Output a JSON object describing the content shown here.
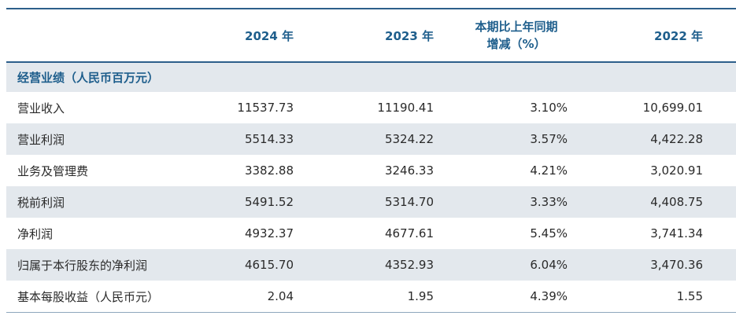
{
  "header": {
    "col_2024": "2024 年",
    "col_2023": "2023 年",
    "col_change_line1": "本期比上年同期",
    "col_change_line2": "增减（%）",
    "col_2022": "2022 年"
  },
  "section_title": "经营业绩（人民币百万元）",
  "rows": [
    {
      "label": "营业收入",
      "y2024": "11537.73",
      "y2023": "11190.41",
      "change": "3.10%",
      "y2022": "10,699.01"
    },
    {
      "label": "营业利润",
      "y2024": "5514.33",
      "y2023": "5324.22",
      "change": "3.57%",
      "y2022": "4,422.28"
    },
    {
      "label": "业务及管理费",
      "y2024": "3382.88",
      "y2023": "3246.33",
      "change": "4.21%",
      "y2022": "3,020.91"
    },
    {
      "label": "税前利润",
      "y2024": "5491.52",
      "y2023": "5314.70",
      "change": "3.33%",
      "y2022": "4,408.75"
    },
    {
      "label": "净利润",
      "y2024": "4932.37",
      "y2023": "4677.61",
      "change": "5.45%",
      "y2022": "3,741.34"
    },
    {
      "label": "归属于本行股东的净利润",
      "y2024": "4615.70",
      "y2023": "4352.93",
      "change": "6.04%",
      "y2022": "3,470.36"
    },
    {
      "label": "基本每股收益（人民币元）",
      "y2024": "2.04",
      "y2023": "1.95",
      "change": "4.39%",
      "y2022": "1.55"
    }
  ],
  "colors": {
    "accent": "#1e5e8c",
    "rule": "#2d5f8a",
    "shade": "#e3e8ed"
  }
}
